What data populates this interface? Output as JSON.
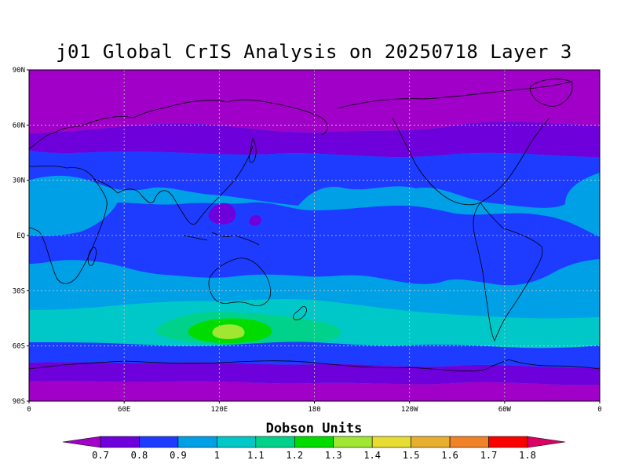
{
  "title": "j01 Global CrIS Analysis on 20250718 Layer 3",
  "colorbar": {
    "title": "Dobson Units",
    "bins": [
      {
        "color": "#a000c8"
      },
      {
        "color": "#6e00dc"
      },
      {
        "color": "#1e3cff"
      },
      {
        "color": "#00a0e6"
      },
      {
        "color": "#00c8c8"
      },
      {
        "color": "#00d28c"
      },
      {
        "color": "#00dc00"
      },
      {
        "color": "#a0e632"
      },
      {
        "color": "#e6dc32"
      },
      {
        "color": "#e6af2d"
      },
      {
        "color": "#f08228"
      },
      {
        "color": "#fa0000"
      },
      {
        "color": "#dc0064"
      }
    ],
    "labels": [
      "0.7",
      "0.8",
      "0.9",
      "1",
      "1.1",
      "1.2",
      "1.3",
      "1.4",
      "1.5",
      "1.6",
      "1.7",
      "1.8"
    ]
  },
  "axes": {
    "lat_ticks": [
      {
        "label": "90N",
        "value": 90
      },
      {
        "label": "60N",
        "value": 60
      },
      {
        "label": "30N",
        "value": 30
      },
      {
        "label": "EQ",
        "value": 0
      },
      {
        "label": "30S",
        "value": -30
      },
      {
        "label": "60S",
        "value": -60
      },
      {
        "label": "90S",
        "value": -90
      }
    ],
    "lon_ticks": [
      {
        "label": "0",
        "value": 0
      },
      {
        "label": "60E",
        "value": 60
      },
      {
        "label": "120E",
        "value": 120
      },
      {
        "label": "180",
        "value": 180
      },
      {
        "label": "120W",
        "value": 240
      },
      {
        "label": "60W",
        "value": 300
      },
      {
        "label": "0",
        "value": 360
      }
    ],
    "grid": true
  },
  "field": {
    "bands": [
      {
        "lat": [
          90,
          65
        ],
        "value": 0.7
      },
      {
        "lat": [
          65,
          50
        ],
        "value": 0.8
      },
      {
        "lat": [
          50,
          18
        ],
        "value": 0.9
      },
      {
        "lat": [
          18,
          -2
        ],
        "value": 0.9
      },
      {
        "lat": [
          -2,
          -24
        ],
        "value": 1.0
      },
      {
        "lat": [
          -24,
          -40
        ],
        "value": 1.0
      },
      {
        "lat": [
          -40,
          -63
        ],
        "value": 1.0
      },
      {
        "lat": [
          -63,
          -72
        ],
        "value": 0.8
      },
      {
        "lat": [
          -72,
          -90
        ],
        "value": 0.7
      }
    ]
  }
}
